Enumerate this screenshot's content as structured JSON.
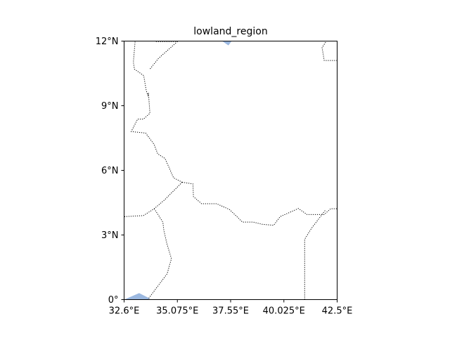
{
  "map": {
    "title": "lowland_region",
    "colors": {
      "water": "#9bb8e0",
      "border": "#000000",
      "frame": "#000000",
      "background": "#ffffff"
    },
    "lon_range": [
      32.6,
      42.5
    ],
    "lat_range": [
      0,
      12
    ],
    "x_ticks": [
      {
        "value": 32.6,
        "label": "32.6°E"
      },
      {
        "value": 35.075,
        "label": "35.075°E"
      },
      {
        "value": 37.55,
        "label": "37.55°E"
      },
      {
        "value": 40.025,
        "label": "40.025°E"
      },
      {
        "value": 42.5,
        "label": "42.5°E"
      }
    ],
    "y_ticks": [
      {
        "value": 0,
        "label": "0°"
      },
      {
        "value": 3,
        "label": "3°N"
      },
      {
        "value": 6,
        "label": "6°N"
      },
      {
        "value": 9,
        "label": "9°N"
      },
      {
        "value": 12,
        "label": "12°N"
      }
    ],
    "borders": [
      [
        [
          33.11,
          11.97
        ],
        [
          33.03,
          11.02
        ],
        [
          33.08,
          10.7
        ],
        [
          33.51,
          10.4
        ],
        [
          33.63,
          9.7
        ],
        [
          33.71,
          9.45
        ],
        [
          33.73,
          9.6
        ],
        [
          33.8,
          8.65
        ],
        [
          33.5,
          8.38
        ],
        [
          33.23,
          8.38
        ],
        [
          32.93,
          7.8
        ],
        [
          33.6,
          7.73
        ],
        [
          34.0,
          7.2
        ],
        [
          34.16,
          6.77
        ],
        [
          34.5,
          6.55
        ],
        [
          34.9,
          5.65
        ],
        [
          35.3,
          5.45
        ]
      ],
      [
        [
          34.08,
          11.98
        ],
        [
          35.08,
          11.98
        ]
      ],
      [
        [
          35.08,
          11.98
        ],
        [
          34.2,
          11.2
        ],
        [
          33.8,
          10.7
        ]
      ],
      [
        [
          35.3,
          5.45
        ],
        [
          35.8,
          5.37
        ],
        [
          35.82,
          4.78
        ],
        [
          36.2,
          4.45
        ],
        [
          36.9,
          4.45
        ],
        [
          37.5,
          4.18
        ],
        [
          38.1,
          3.6
        ],
        [
          38.6,
          3.6
        ],
        [
          39.0,
          3.5
        ],
        [
          39.55,
          3.45
        ],
        [
          39.85,
          3.85
        ],
        [
          40.7,
          4.23
        ],
        [
          41.1,
          3.95
        ],
        [
          41.9,
          3.95
        ],
        [
          42.2,
          4.22
        ],
        [
          42.5,
          4.22
        ]
      ],
      [
        [
          35.3,
          5.45
        ],
        [
          34.5,
          4.65
        ],
        [
          34.0,
          4.22
        ],
        [
          33.5,
          3.9
        ],
        [
          32.6,
          3.85
        ]
      ],
      [
        [
          34.0,
          4.22
        ],
        [
          34.4,
          3.6
        ],
        [
          34.45,
          3.2
        ],
        [
          34.6,
          2.55
        ],
        [
          34.8,
          1.9
        ],
        [
          34.6,
          1.2
        ],
        [
          34.0,
          0.4
        ],
        [
          33.7,
          0.0
        ]
      ],
      [
        [
          40.99,
          0.0
        ],
        [
          40.99,
          2.8
        ],
        [
          41.3,
          3.3
        ],
        [
          41.95,
          4.15
        ]
      ],
      [
        [
          42.5,
          11.1
        ],
        [
          41.9,
          11.1
        ],
        [
          41.8,
          11.7
        ],
        [
          42.0,
          12.0
        ]
      ]
    ],
    "water_bodies": [
      [
        [
          32.6,
          0.0
        ],
        [
          33.3,
          0.3
        ],
        [
          33.8,
          0.05
        ],
        [
          33.7,
          0.0
        ]
      ],
      [
        [
          37.15,
          12.0
        ],
        [
          37.45,
          11.8
        ],
        [
          37.6,
          12.0
        ]
      ]
    ]
  }
}
